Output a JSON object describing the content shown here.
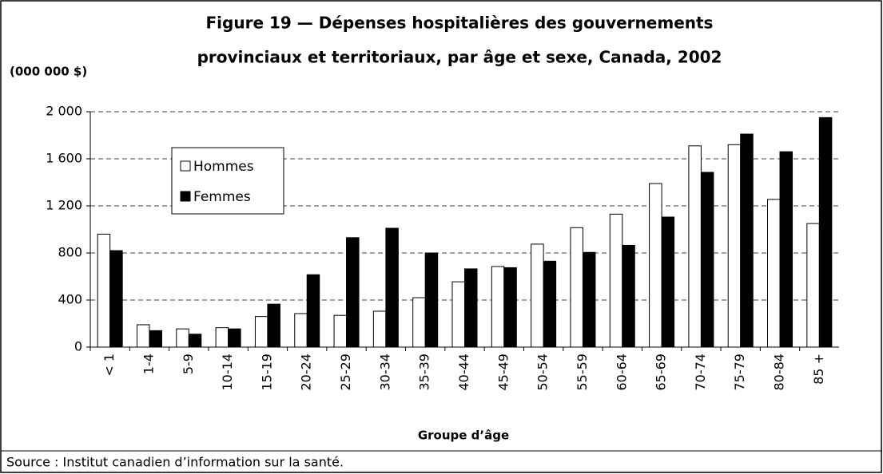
{
  "chart_data": {
    "type": "bar",
    "title": [
      "Figure 19 — Dépenses hospitalières des gouvernements",
      "provinciaux et territoriaux, par âge et sexe, Canada, 2002"
    ],
    "y_label": "(000 000 $)",
    "x_label": "Groupe d’âge",
    "source": "Source : Institut canadien d’information sur la santé.",
    "categories": [
      "< 1",
      "1-4",
      "5-9",
      "10-14",
      "15-19",
      "20-24",
      "25-29",
      "30-34",
      "35-39",
      "40-44",
      "45-49",
      "50-54",
      "55-59",
      "60-64",
      "65-69",
      "70-74",
      "75-79",
      "80-84",
      "85 +"
    ],
    "series": [
      {
        "name": "Hommes",
        "color": "#ffffff",
        "values": [
          960,
          190,
          155,
          165,
          260,
          285,
          270,
          305,
          420,
          555,
          685,
          875,
          1015,
          1130,
          1390,
          1710,
          1720,
          1255,
          1050
        ]
      },
      {
        "name": "Femmes",
        "color": "#000000",
        "values": [
          820,
          140,
          110,
          155,
          365,
          615,
          930,
          1010,
          800,
          665,
          675,
          730,
          805,
          865,
          1105,
          1485,
          1810,
          1660,
          1950
        ]
      }
    ],
    "ylim": [
      0,
      2000
    ],
    "yticks": [
      0,
      400,
      800,
      {
        "value": 1200,
        "label": "1 200"
      },
      {
        "value": 1600,
        "label": "1 600"
      },
      {
        "value": 2000,
        "label": "2 000"
      }
    ],
    "grid": true,
    "legend": "upper left"
  }
}
